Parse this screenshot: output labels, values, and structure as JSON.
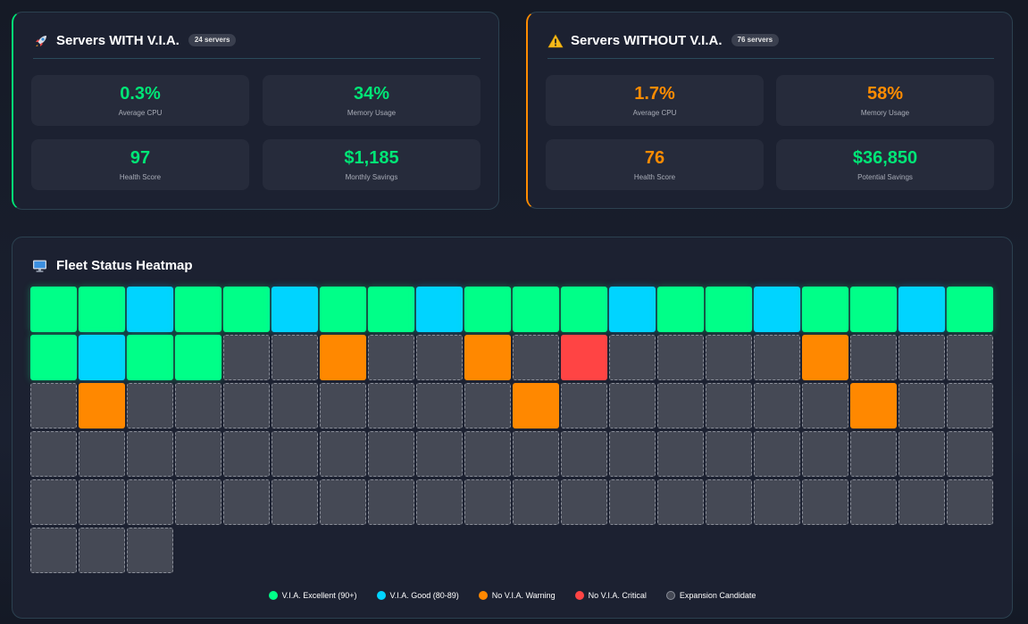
{
  "with_via": {
    "title": "Servers WITH V.I.A.",
    "badge": "24 servers",
    "icon": "rocket-icon",
    "accent": "#00e676",
    "metrics": [
      {
        "value": "0.3%",
        "label": "Average CPU"
      },
      {
        "value": "34%",
        "label": "Memory Usage"
      },
      {
        "value": "97",
        "label": "Health Score"
      },
      {
        "value": "$1,185",
        "label": "Monthly Savings"
      }
    ]
  },
  "without_via": {
    "title": "Servers WITHOUT V.I.A.",
    "badge": "76 servers",
    "icon": "warning-icon",
    "accent": "#ff8c00",
    "metrics": [
      {
        "value": "1.7%",
        "label": "Average CPU"
      },
      {
        "value": "58%",
        "label": "Memory Usage"
      },
      {
        "value": "76",
        "label": "Health Score"
      },
      {
        "value": "$36,850",
        "label": "Potential Savings"
      }
    ]
  },
  "heatmap": {
    "title": "Fleet Status Heatmap",
    "icon": "monitor-icon",
    "cells": [
      "excellent",
      "excellent",
      "good",
      "excellent",
      "excellent",
      "good",
      "excellent",
      "excellent",
      "good",
      "excellent",
      "excellent",
      "excellent",
      "good",
      "excellent",
      "excellent",
      "good",
      "excellent",
      "excellent",
      "good",
      "excellent",
      "excellent",
      "good",
      "excellent",
      "excellent",
      "candidate",
      "candidate",
      "warning",
      "candidate",
      "candidate",
      "warning",
      "candidate",
      "critical",
      "candidate",
      "candidate",
      "candidate",
      "candidate",
      "warning",
      "candidate",
      "candidate",
      "candidate",
      "candidate",
      "warning",
      "candidate",
      "candidate",
      "candidate",
      "candidate",
      "candidate",
      "candidate",
      "candidate",
      "candidate",
      "warning",
      "candidate",
      "candidate",
      "candidate",
      "candidate",
      "candidate",
      "candidate",
      "warning",
      "candidate",
      "candidate",
      "candidate",
      "candidate",
      "candidate",
      "candidate",
      "candidate",
      "candidate",
      "candidate",
      "candidate",
      "candidate",
      "candidate",
      "candidate",
      "candidate",
      "candidate",
      "candidate",
      "candidate",
      "candidate",
      "candidate",
      "candidate",
      "candidate",
      "candidate",
      "candidate",
      "candidate",
      "candidate",
      "candidate",
      "candidate",
      "candidate",
      "candidate",
      "candidate",
      "candidate",
      "candidate",
      "candidate",
      "candidate",
      "candidate",
      "candidate",
      "candidate",
      "candidate",
      "candidate",
      "candidate",
      "candidate",
      "candidate",
      "candidate",
      "candidate",
      "candidate"
    ],
    "legend": [
      {
        "label": "V.I.A. Excellent (90+)",
        "color": "#00ff88"
      },
      {
        "label": "V.I.A. Good (80-89)",
        "color": "#00d4ff"
      },
      {
        "label": "No V.I.A. Warning",
        "color": "#ff8800"
      },
      {
        "label": "No V.I.A. Critical",
        "color": "#ff4444"
      },
      {
        "label": "Expansion Candidate",
        "color": "#454955"
      }
    ]
  }
}
